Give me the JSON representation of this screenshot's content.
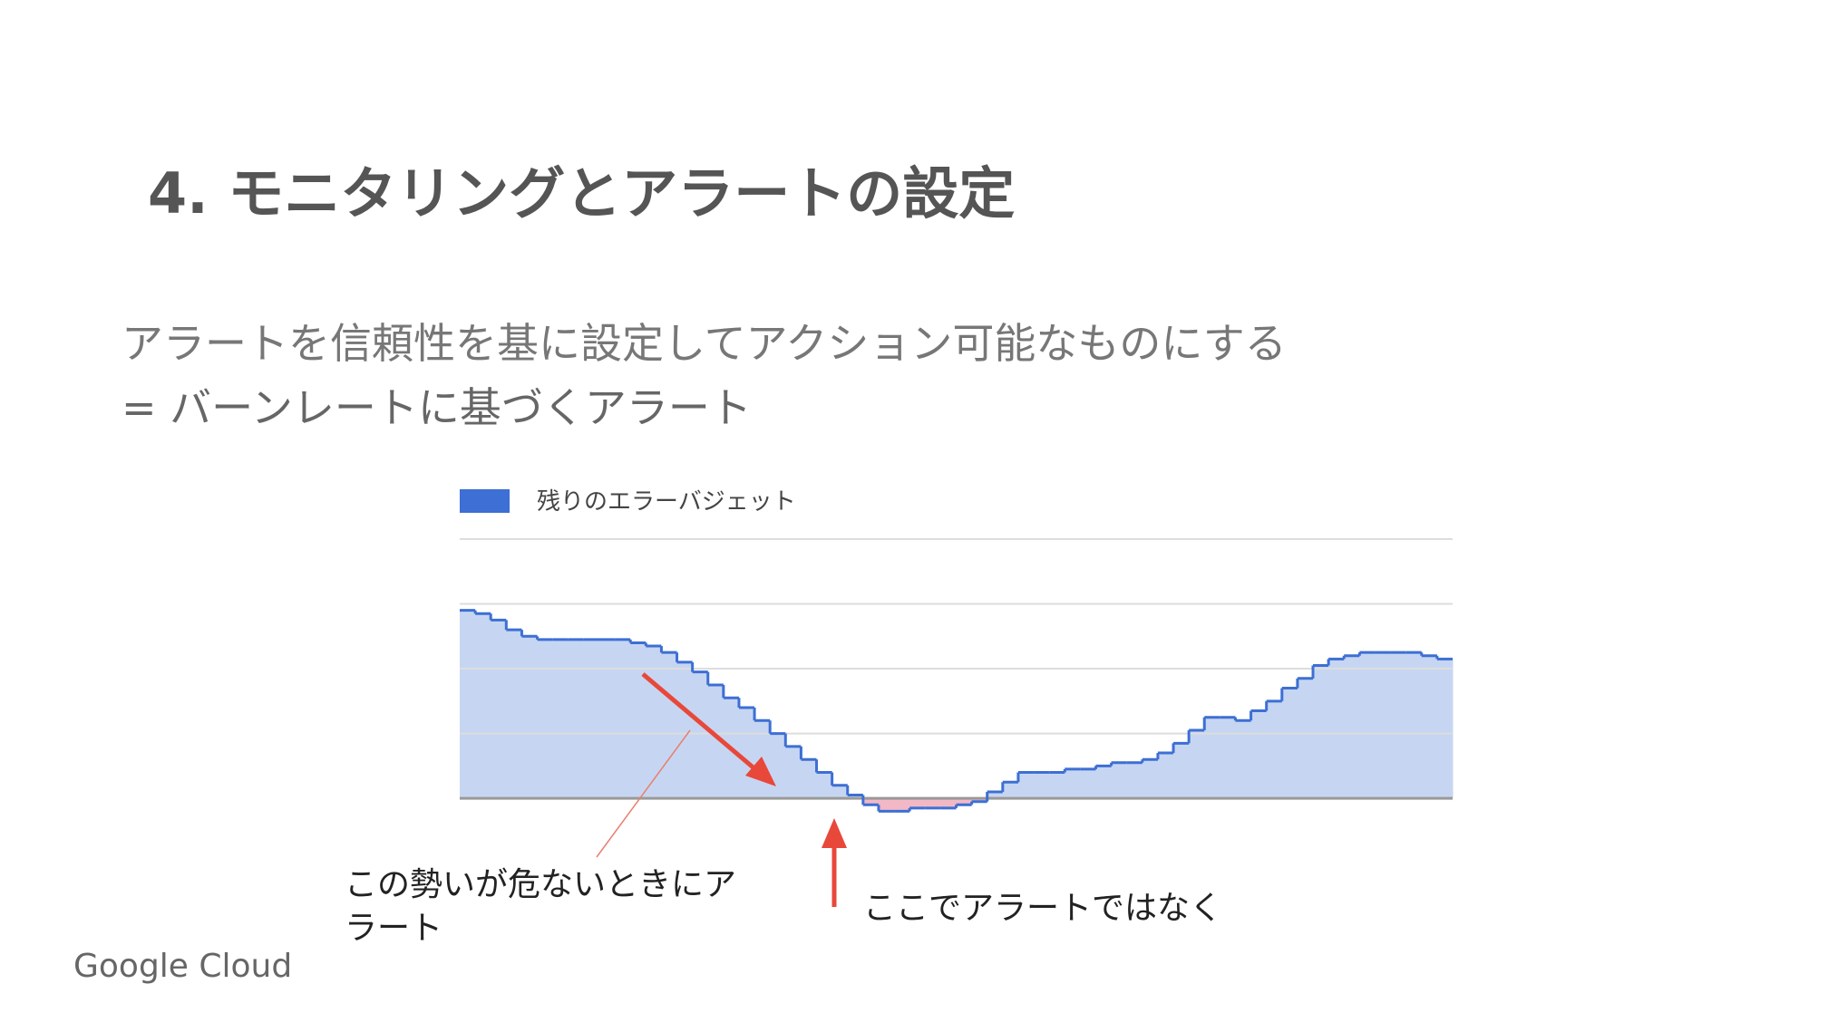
{
  "title": "4. モニタリングとアラートの設定",
  "subtitle": [
    "アラートを信頼性を基に設定してアクション可能なものにする",
    "= バーンレートに基づくアラート"
  ],
  "annotations": [
    [
      "この勢いが危ないときにア",
      "ラート"
    ],
    [
      "ここでアラートではなく"
    ]
  ],
  "footer": "Google Cloud",
  "chart_data": {
    "type": "step-area",
    "series": [
      {
        "name": "残りのエラーバジェット",
        "color": "#3d6fd4",
        "fill": "#c6d6f2",
        "negative_fill": "#f2b8c6",
        "values": [
          2.9,
          2.85,
          2.75,
          2.6,
          2.5,
          2.45,
          2.45,
          2.45,
          2.45,
          2.45,
          2.45,
          2.4,
          2.35,
          2.25,
          2.1,
          1.95,
          1.75,
          1.55,
          1.4,
          1.2,
          1.0,
          0.8,
          0.6,
          0.4,
          0.2,
          0.05,
          -0.1,
          -0.2,
          -0.2,
          -0.15,
          -0.15,
          -0.15,
          -0.1,
          -0.05,
          0.1,
          0.25,
          0.4,
          0.4,
          0.4,
          0.45,
          0.45,
          0.5,
          0.55,
          0.55,
          0.6,
          0.7,
          0.85,
          1.05,
          1.25,
          1.25,
          1.2,
          1.35,
          1.5,
          1.7,
          1.85,
          2.05,
          2.15,
          2.2,
          2.25,
          2.25,
          2.25,
          2.25,
          2.2,
          2.15
        ]
      }
    ],
    "ylim": [
      -0.25,
      4
    ],
    "yticks": [
      0,
      1,
      2,
      3,
      4
    ],
    "grid": true
  }
}
